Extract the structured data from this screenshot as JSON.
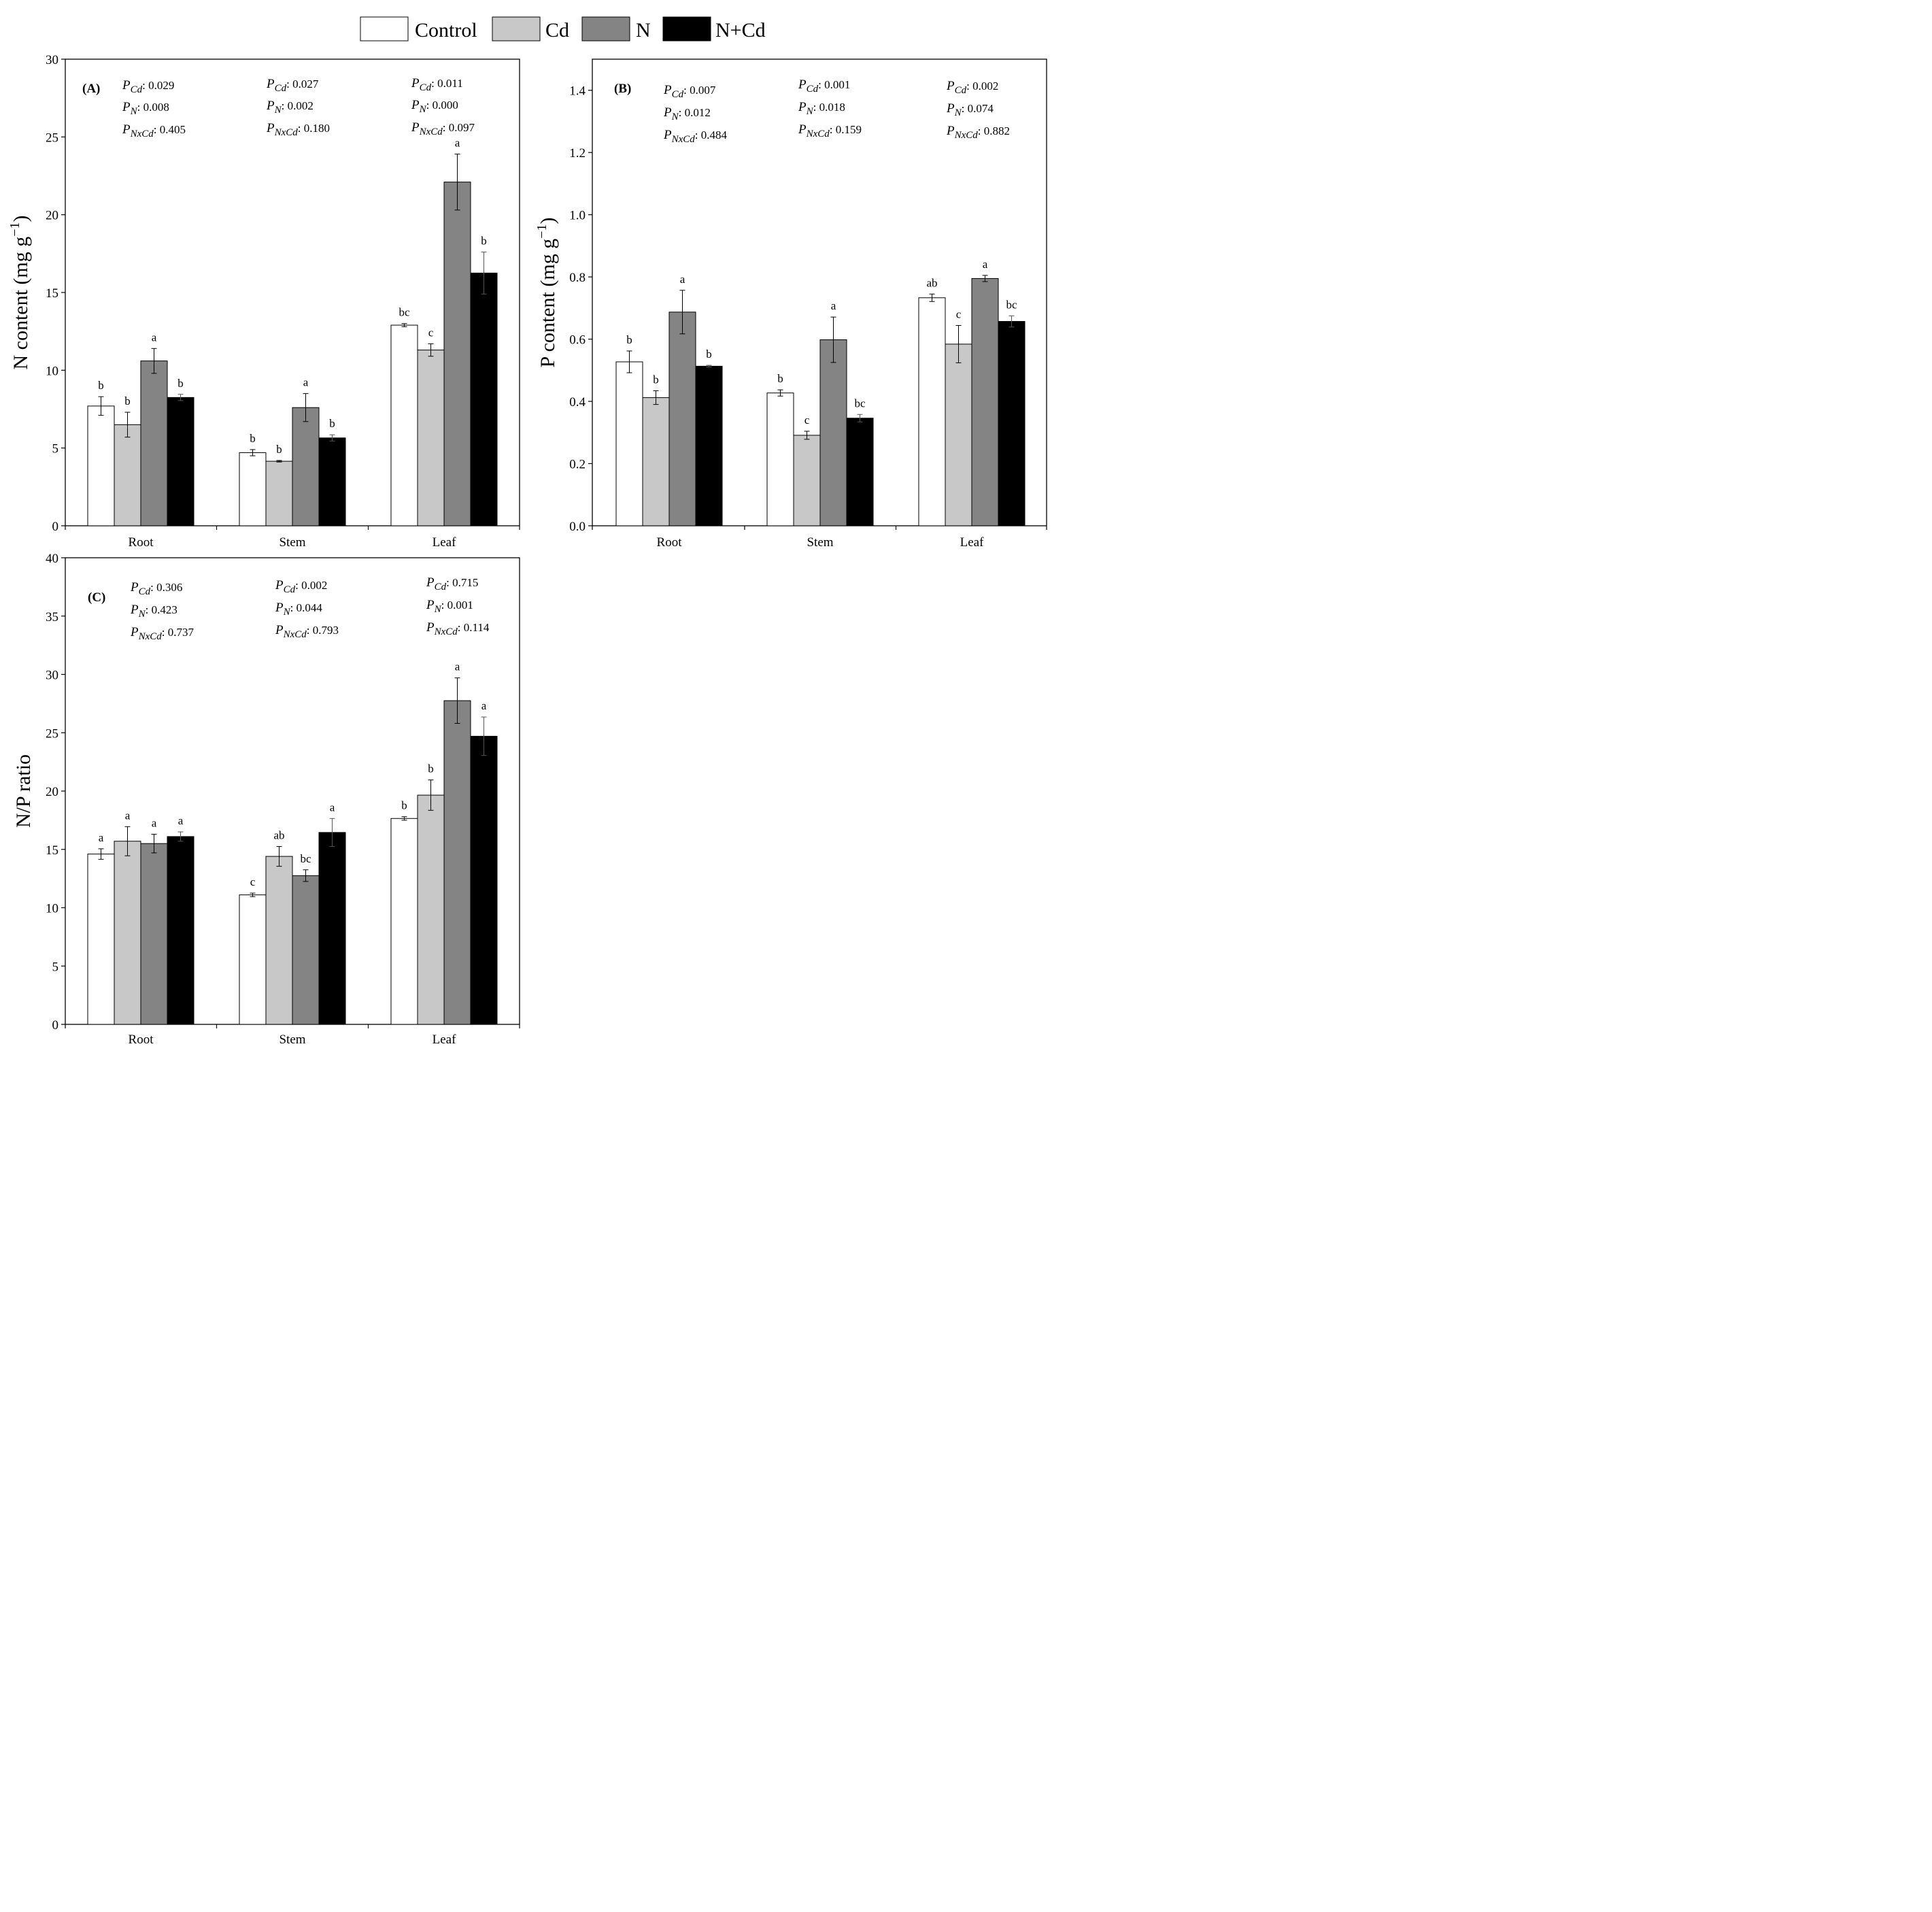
{
  "legend": [
    {
      "label": "Control",
      "color": "#ffffff"
    },
    {
      "label": "Cd",
      "color": "#c8c8c8"
    },
    {
      "label": "N",
      "color": "#848484"
    },
    {
      "label": "N+Cd",
      "color": "#000000"
    }
  ],
  "chart_data": [
    {
      "id": "A",
      "panel_label": "(A)",
      "type": "bar",
      "ylabel_main": "N content (mg g",
      "ylabel_sup": "−1",
      "ylabel_end": ")",
      "ylim": [
        0,
        30
      ],
      "yticks": [
        0,
        5,
        10,
        15,
        20,
        25,
        30
      ],
      "tick_decimals": 0,
      "categories": [
        "Root",
        "Stem",
        "Leaf"
      ],
      "series": [
        {
          "name": "Control",
          "values": [
            7.7,
            4.7,
            12.9
          ],
          "errors": [
            0.6,
            0.2,
            0.1
          ],
          "letters": [
            "b",
            "b",
            "bc"
          ]
        },
        {
          "name": "Cd",
          "values": [
            6.5,
            4.15,
            11.3
          ],
          "errors": [
            0.8,
            0.05,
            0.4
          ],
          "letters": [
            "b",
            "b",
            "c"
          ]
        },
        {
          "name": "N",
          "values": [
            10.6,
            7.6,
            22.1
          ],
          "errors": [
            0.8,
            0.9,
            1.8
          ],
          "letters": [
            "a",
            "a",
            "a"
          ]
        },
        {
          "name": "N+Cd",
          "values": [
            8.25,
            5.65,
            16.25
          ],
          "errors": [
            0.2,
            0.2,
            1.35
          ],
          "letters": [
            "b",
            "b",
            "b"
          ]
        }
      ],
      "stats": [
        {
          "p_cd": "0.029",
          "p_n": "0.008",
          "p_nxcd": "0.405"
        },
        {
          "p_cd": "0.027",
          "p_n": "0.002",
          "p_nxcd": "0.180"
        },
        {
          "p_cd": "0.011",
          "p_n": "0.000",
          "p_nxcd": "0.097"
        }
      ]
    },
    {
      "id": "B",
      "panel_label": "(B)",
      "type": "bar",
      "ylabel_main": "P content (mg g",
      "ylabel_sup": "−1",
      "ylabel_end": ")",
      "ylim": [
        0,
        1.5
      ],
      "yticks": [
        0.0,
        0.2,
        0.4,
        0.6,
        0.8,
        1.0,
        1.2,
        1.4
      ],
      "tick_decimals": 1,
      "categories": [
        "Root",
        "Stem",
        "Leaf"
      ],
      "series": [
        {
          "name": "Control",
          "values": [
            0.527,
            0.427,
            0.733
          ],
          "errors": [
            0.035,
            0.01,
            0.012
          ],
          "letters": [
            "b",
            "b",
            "ab"
          ]
        },
        {
          "name": "Cd",
          "values": [
            0.412,
            0.291,
            0.584
          ],
          "errors": [
            0.022,
            0.013,
            0.06
          ],
          "letters": [
            "b",
            "c",
            "c"
          ]
        },
        {
          "name": "N",
          "values": [
            0.687,
            0.598,
            0.795
          ],
          "errors": [
            0.07,
            0.073,
            0.01
          ],
          "letters": [
            "a",
            "a",
            "a"
          ]
        },
        {
          "name": "N+Cd",
          "values": [
            0.513,
            0.346,
            0.657
          ],
          "errors": [
            0.003,
            0.012,
            0.018
          ],
          "letters": [
            "b",
            "bc",
            "bc"
          ]
        }
      ],
      "stats": [
        {
          "p_cd": "0.007",
          "p_n": "0.012",
          "p_nxcd": "0.484"
        },
        {
          "p_cd": "0.001",
          "p_n": "0.018",
          "p_nxcd": "0.159"
        },
        {
          "p_cd": "0.002",
          "p_n": "0.074",
          "p_nxcd": "0.882"
        }
      ]
    },
    {
      "id": "C",
      "panel_label": "(C)",
      "type": "bar",
      "ylabel_main": "N/P ratio",
      "ylabel_sup": "",
      "ylabel_end": "",
      "ylim": [
        0,
        40
      ],
      "yticks": [
        0,
        5,
        10,
        15,
        20,
        25,
        30,
        35,
        40
      ],
      "tick_decimals": 0,
      "categories": [
        "Root",
        "Stem",
        "Leaf"
      ],
      "series": [
        {
          "name": "Control",
          "values": [
            14.6,
            11.1,
            17.65
          ],
          "errors": [
            0.45,
            0.15,
            0.15
          ],
          "letters": [
            "a",
            "c",
            "b"
          ]
        },
        {
          "name": "Cd",
          "values": [
            15.7,
            14.4,
            19.65
          ],
          "errors": [
            1.25,
            0.85,
            1.3
          ],
          "letters": [
            "a",
            "ab",
            "b"
          ]
        },
        {
          "name": "N",
          "values": [
            15.5,
            12.75,
            27.75
          ],
          "errors": [
            0.8,
            0.5,
            1.95
          ],
          "letters": [
            "a",
            "bc",
            "a"
          ]
        },
        {
          "name": "N+Cd",
          "values": [
            16.1,
            16.45,
            24.7
          ],
          "errors": [
            0.4,
            1.2,
            1.65
          ],
          "letters": [
            "a",
            "a",
            "a"
          ]
        }
      ],
      "stats": [
        {
          "p_cd": "0.306",
          "p_n": "0.423",
          "p_nxcd": "0.737"
        },
        {
          "p_cd": "0.002",
          "p_n": "0.044",
          "p_nxcd": "0.793"
        },
        {
          "p_cd": "0.715",
          "p_n": "0.001",
          "p_nxcd": "0.114"
        }
      ]
    }
  ],
  "stat_labels": {
    "p": "P",
    "cd": "Cd",
    "n": "N",
    "nxcd": "NxCd"
  }
}
